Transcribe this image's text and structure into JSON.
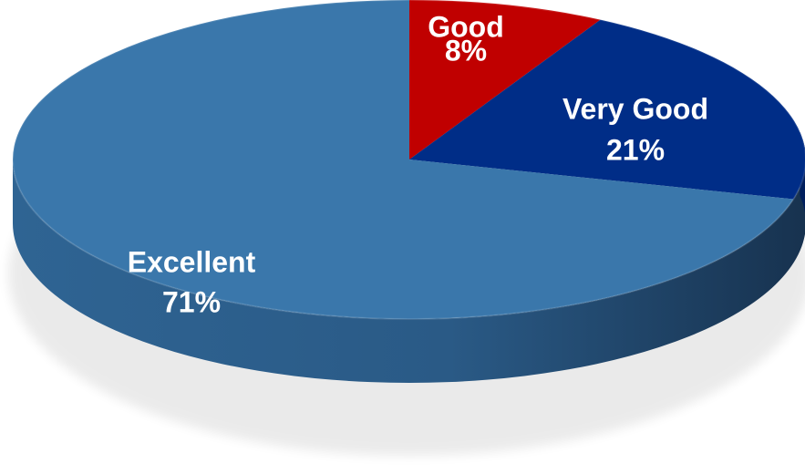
{
  "chart_data": {
    "type": "pie",
    "style": "3d",
    "title": "",
    "slices": [
      {
        "label": "Good",
        "value_label": "8%",
        "value": 8,
        "color": "#c00000"
      },
      {
        "label": "Very Good",
        "value_label": "21%",
        "value": 21,
        "color": "#002d87"
      },
      {
        "label": "Excellent",
        "value_label": "71%",
        "value": 71,
        "color": "#3a77ab"
      }
    ],
    "legend": "none"
  }
}
